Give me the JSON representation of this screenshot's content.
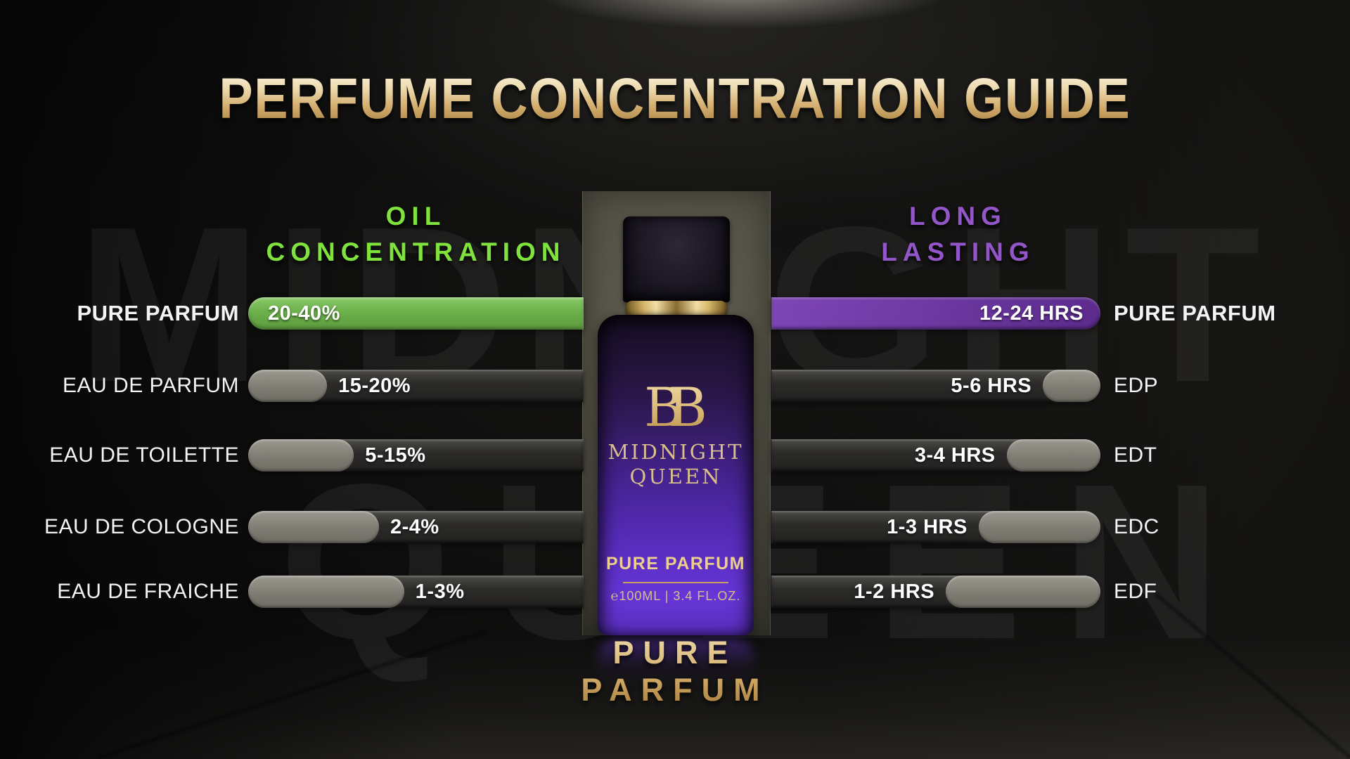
{
  "title": "PERFUME CONCENTRATION GUIDE",
  "left_heading": {
    "line1": "OIL",
    "line2": "CONCENTRATION"
  },
  "right_heading": {
    "line1": "LONG",
    "line2": "LASTING"
  },
  "rows": [
    {
      "left_label": "PURE PARFUM",
      "oil": "20-40%",
      "hours": "12-24 HRS",
      "right_label": "PURE PARFUM",
      "oil_fill_pct": 100,
      "lasting_fill_pct": 100
    },
    {
      "left_label": "EAU DE PARFUM",
      "oil": "15-20%",
      "hours": "5-6 HRS",
      "right_label": "EDP",
      "oil_fill_pct": 23.5,
      "lasting_fill_pct": 17.5
    },
    {
      "left_label": "EAU DE TOILETTE",
      "oil": "5-15%",
      "hours": "3-4 HRS",
      "right_label": "EDT",
      "oil_fill_pct": 31.5,
      "lasting_fill_pct": 28.5
    },
    {
      "left_label": "EAU DE COLOGNE",
      "oil": "2-4%",
      "hours": "1-3 HRS",
      "right_label": "EDC",
      "oil_fill_pct": 39,
      "lasting_fill_pct": 37
    },
    {
      "left_label": "EAU DE FRAICHE",
      "oil": "1-3%",
      "hours": "1-2 HRS",
      "right_label": "EDF",
      "oil_fill_pct": 46.5,
      "lasting_fill_pct": 47
    }
  ],
  "bottle": {
    "logo": "BB",
    "name_line1": "MIDNIGHT",
    "name_line2": "QUEEN",
    "type_label": "PURE PARFUM",
    "volume": "℮100ML | 3.4 FL.OZ."
  },
  "footer": {
    "line1": "PURE",
    "line2": "PARFUM"
  },
  "watermark": {
    "line1": "MIDNIGHT",
    "line2": "QUEEN"
  },
  "colors": {
    "gold": "#d9b877",
    "green-text": "#7fe23d",
    "green-bar": "#6cb04b",
    "purple-text": "#9356c8",
    "purple-bar": "#6b379f",
    "fill-grey": "#7e7c73",
    "track-grey": "#2c2b29"
  }
}
